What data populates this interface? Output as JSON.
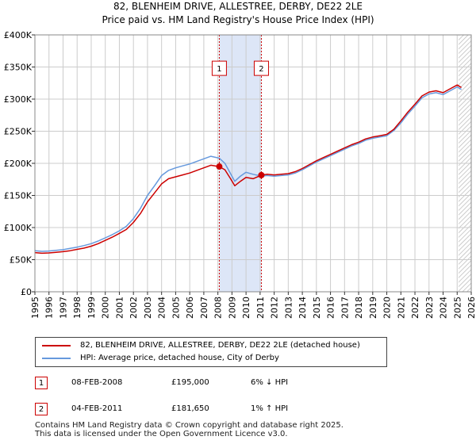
{
  "title_line1": "82, BLENHEIM DRIVE, ALLESTREE, DERBY, DE22 2LE",
  "title_line2": "Price paid vs. HM Land Registry's House Price Index (HPI)",
  "colors": {
    "red": "#cc0000",
    "blue": "#6699dd",
    "band": "#dde6f7",
    "grid": "#cccccc"
  },
  "chart_data": {
    "type": "line",
    "xlim": [
      1995,
      2026
    ],
    "ylim": [
      0,
      400000
    ],
    "yticks": [
      {
        "value": 0,
        "label": "£0"
      },
      {
        "value": 50000,
        "label": "£50K"
      },
      {
        "value": 100000,
        "label": "£100K"
      },
      {
        "value": 150000,
        "label": "£150K"
      },
      {
        "value": 200000,
        "label": "£200K"
      },
      {
        "value": 250000,
        "label": "£250K"
      },
      {
        "value": 300000,
        "label": "£300K"
      },
      {
        "value": 350000,
        "label": "£350K"
      },
      {
        "value": 400000,
        "label": "£400K"
      }
    ],
    "xticks": [
      "1995",
      "1996",
      "1997",
      "1998",
      "1999",
      "2000",
      "2001",
      "2002",
      "2003",
      "2004",
      "2005",
      "2006",
      "2007",
      "2008",
      "2009",
      "2010",
      "2011",
      "2012",
      "2013",
      "2014",
      "2015",
      "2016",
      "2017",
      "2018",
      "2019",
      "2020",
      "2021",
      "2022",
      "2023",
      "2024",
      "2025",
      "2026"
    ],
    "shaded_band": [
      2008.1,
      2011.09
    ],
    "hatched_from": 2025.1,
    "series": [
      {
        "name": "82, BLENHEIM DRIVE, ALLESTREE, DERBY, DE22 2LE (detached house)",
        "color": "#cc0000",
        "points": [
          [
            1995,
            61000
          ],
          [
            1995.5,
            60000
          ],
          [
            1996,
            60500
          ],
          [
            1996.5,
            61500
          ],
          [
            1997,
            62500
          ],
          [
            1997.5,
            64000
          ],
          [
            1998,
            66000
          ],
          [
            1998.5,
            68000
          ],
          [
            1999,
            71000
          ],
          [
            1999.5,
            75000
          ],
          [
            2000,
            80000
          ],
          [
            2000.5,
            85000
          ],
          [
            2001,
            91000
          ],
          [
            2001.5,
            97000
          ],
          [
            2002,
            108000
          ],
          [
            2002.5,
            122000
          ],
          [
            2003,
            140000
          ],
          [
            2003.5,
            154000
          ],
          [
            2004,
            168000
          ],
          [
            2004.5,
            176000
          ],
          [
            2005,
            179000
          ],
          [
            2005.5,
            182000
          ],
          [
            2006,
            185000
          ],
          [
            2006.5,
            189000
          ],
          [
            2007,
            193000
          ],
          [
            2007.5,
            197000
          ],
          [
            2008.1,
            195000
          ],
          [
            2008.5,
            190000
          ],
          [
            2008.9,
            176000
          ],
          [
            2009.2,
            165000
          ],
          [
            2009.6,
            172000
          ],
          [
            2010,
            178000
          ],
          [
            2010.5,
            176000
          ],
          [
            2011.09,
            181650
          ],
          [
            2011.5,
            183000
          ],
          [
            2012,
            182000
          ],
          [
            2012.5,
            183000
          ],
          [
            2013,
            184000
          ],
          [
            2013.5,
            187000
          ],
          [
            2014,
            192000
          ],
          [
            2014.5,
            198000
          ],
          [
            2015,
            204000
          ],
          [
            2015.5,
            209000
          ],
          [
            2016,
            214000
          ],
          [
            2016.5,
            219000
          ],
          [
            2017,
            224000
          ],
          [
            2017.5,
            229000
          ],
          [
            2018,
            233000
          ],
          [
            2018.5,
            238000
          ],
          [
            2019,
            241000
          ],
          [
            2019.5,
            243000
          ],
          [
            2020,
            245000
          ],
          [
            2020.5,
            253000
          ],
          [
            2021,
            266000
          ],
          [
            2021.5,
            280000
          ],
          [
            2022,
            292000
          ],
          [
            2022.5,
            305000
          ],
          [
            2023,
            311000
          ],
          [
            2023.5,
            313000
          ],
          [
            2024,
            310000
          ],
          [
            2024.5,
            316000
          ],
          [
            2025,
            322000
          ],
          [
            2025.3,
            318000
          ]
        ]
      },
      {
        "name": "HPI: Average price, detached house, City of Derby",
        "color": "#6699dd",
        "points": [
          [
            1995,
            64000
          ],
          [
            1995.5,
            63000
          ],
          [
            1996,
            63500
          ],
          [
            1996.5,
            64500
          ],
          [
            1997,
            65500
          ],
          [
            1997.5,
            67500
          ],
          [
            1998,
            69500
          ],
          [
            1998.5,
            72000
          ],
          [
            1999,
            75000
          ],
          [
            1999.5,
            79000
          ],
          [
            2000,
            84000
          ],
          [
            2000.5,
            89000
          ],
          [
            2001,
            95000
          ],
          [
            2001.5,
            102000
          ],
          [
            2002,
            114000
          ],
          [
            2002.5,
            130000
          ],
          [
            2003,
            150000
          ],
          [
            2003.5,
            165000
          ],
          [
            2004,
            181000
          ],
          [
            2004.5,
            189000
          ],
          [
            2005,
            193000
          ],
          [
            2005.5,
            196000
          ],
          [
            2006,
            199000
          ],
          [
            2006.5,
            203000
          ],
          [
            2007,
            207000
          ],
          [
            2007.5,
            211000
          ],
          [
            2008.1,
            208000
          ],
          [
            2008.5,
            200000
          ],
          [
            2008.9,
            184000
          ],
          [
            2009.2,
            172000
          ],
          [
            2009.6,
            180000
          ],
          [
            2010,
            186000
          ],
          [
            2010.5,
            183000
          ],
          [
            2011.09,
            180000
          ],
          [
            2011.5,
            181000
          ],
          [
            2012,
            180000
          ],
          [
            2012.5,
            181000
          ],
          [
            2013,
            182000
          ],
          [
            2013.5,
            185000
          ],
          [
            2014,
            190000
          ],
          [
            2014.5,
            196000
          ],
          [
            2015,
            202000
          ],
          [
            2015.5,
            207000
          ],
          [
            2016,
            212000
          ],
          [
            2016.5,
            217000
          ],
          [
            2017,
            222000
          ],
          [
            2017.5,
            227000
          ],
          [
            2018,
            231000
          ],
          [
            2018.5,
            236000
          ],
          [
            2019,
            239000
          ],
          [
            2019.5,
            241000
          ],
          [
            2020,
            243000
          ],
          [
            2020.5,
            251000
          ],
          [
            2021,
            263000
          ],
          [
            2021.5,
            277000
          ],
          [
            2022,
            289000
          ],
          [
            2022.5,
            302000
          ],
          [
            2023,
            308000
          ],
          [
            2023.5,
            310000
          ],
          [
            2024,
            307000
          ],
          [
            2024.5,
            313000
          ],
          [
            2025,
            319000
          ],
          [
            2025.3,
            315000
          ]
        ]
      }
    ],
    "markers": [
      {
        "label": "1",
        "x": 2008.1,
        "y": 195000
      },
      {
        "label": "2",
        "x": 2011.09,
        "y": 181650
      }
    ],
    "marker_box_y": 348000
  },
  "legend": {
    "items": [
      {
        "label": "82, BLENHEIM DRIVE, ALLESTREE, DERBY, DE22 2LE (detached house)",
        "color": "#cc0000"
      },
      {
        "label": "HPI: Average price, detached house, City of Derby",
        "color": "#6699dd"
      }
    ]
  },
  "transactions": [
    {
      "num": "1",
      "date": "08-FEB-2008",
      "price": "£195,000",
      "hpi": "6% ↓ HPI"
    },
    {
      "num": "2",
      "date": "04-FEB-2011",
      "price": "£181,650",
      "hpi": "1% ↑ HPI"
    }
  ],
  "footer": {
    "line1": "Contains HM Land Registry data © Crown copyright and database right 2025.",
    "line2": "This data is licensed under the Open Government Licence v3.0."
  }
}
